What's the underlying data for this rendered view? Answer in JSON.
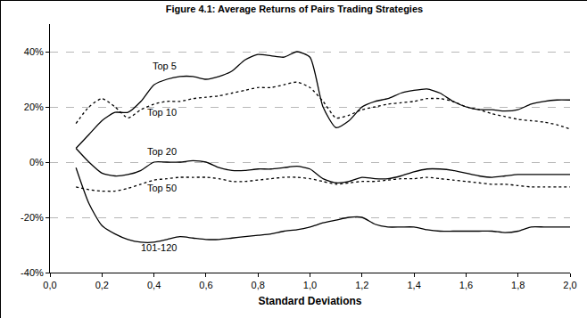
{
  "chart_data": {
    "type": "line",
    "title": "Figure 4.1: Average Returns of Pairs Trading Strategies",
    "x_label": "Standard Deviations",
    "x": [
      0.1,
      0.15,
      0.2,
      0.25,
      0.3,
      0.35,
      0.4,
      0.45,
      0.5,
      0.55,
      0.6,
      0.65,
      0.7,
      0.75,
      0.8,
      0.85,
      0.9,
      0.95,
      1.0,
      1.05,
      1.1,
      1.15,
      1.2,
      1.25,
      1.3,
      1.35,
      1.4,
      1.45,
      1.5,
      1.55,
      1.6,
      1.65,
      1.7,
      1.75,
      1.8,
      1.85,
      1.9,
      1.95,
      2.0
    ],
    "series": [
      {
        "name": "Top 5",
        "color": "#000000",
        "line_style": "solid",
        "values": [
          5,
          10,
          15,
          18,
          18,
          22,
          28,
          30,
          31,
          31,
          30,
          31,
          33,
          37,
          39,
          38.5,
          38,
          40,
          38,
          20,
          12.5,
          15,
          20,
          22,
          23,
          25,
          26,
          26.5,
          25,
          22,
          20,
          19,
          19,
          18.5,
          19,
          21,
          22,
          22.5,
          22.5
        ]
      },
      {
        "name": "Top 10",
        "color": "#000000",
        "line_style": "dotted",
        "values": [
          14,
          20,
          23,
          20,
          16,
          19,
          21,
          22,
          22,
          23,
          23.5,
          24,
          25,
          26,
          27,
          27,
          28,
          29,
          27,
          22,
          16,
          17,
          19,
          20,
          21,
          21.5,
          22,
          23,
          23,
          22,
          20,
          19,
          17.5,
          16.5,
          15.5,
          15,
          14.5,
          13.5,
          12
        ]
      },
      {
        "name": "Top 20",
        "color": "#000000",
        "line_style": "solid",
        "values": [
          5,
          0,
          -4,
          -5,
          -4.5,
          -3,
          0,
          0,
          0,
          0.5,
          0,
          -2,
          -3,
          -3,
          -2.5,
          -2.5,
          -2,
          -1.5,
          -2.5,
          -6,
          -7.5,
          -7,
          -5.5,
          -6,
          -6,
          -5,
          -3.5,
          -2.5,
          -2.5,
          -3,
          -4,
          -5,
          -5.5,
          -5,
          -4.5,
          -4.5,
          -4.5,
          -4.5,
          -4.5
        ]
      },
      {
        "name": "Top 50",
        "color": "#000000",
        "line_style": "dotted",
        "values": [
          -9,
          -10,
          -10.5,
          -10.5,
          -9.5,
          -8,
          -6.5,
          -6,
          -5.5,
          -5.5,
          -5.5,
          -6,
          -7,
          -7,
          -6.5,
          -6,
          -5.5,
          -5.5,
          -6,
          -7,
          -8,
          -7.5,
          -7,
          -7,
          -6.5,
          -6,
          -6,
          -5.5,
          -6,
          -6.5,
          -7,
          -7.5,
          -8,
          -8,
          -8.5,
          -9,
          -9,
          -9,
          -9
        ]
      },
      {
        "name": "101-120",
        "color": "#000000",
        "line_style": "solid",
        "values": [
          -2,
          -15,
          -23,
          -26,
          -28,
          -29,
          -29,
          -28,
          -27,
          -27.5,
          -28,
          -28,
          -27.5,
          -27,
          -26.5,
          -26,
          -25,
          -24.5,
          -23.5,
          -22,
          -21,
          -20,
          -20,
          -22.5,
          -23.5,
          -23.5,
          -23.5,
          -24.5,
          -25,
          -25,
          -25,
          -25,
          -25,
          -25.5,
          -25,
          -23.5,
          -23.5,
          -23.5,
          -23.5
        ]
      }
    ],
    "xlim": [
      0,
      2.0
    ],
    "xticks": [
      {
        "value": 0,
        "label": "0,0"
      },
      {
        "value": 0.2,
        "label": "0,2"
      },
      {
        "value": 0.4,
        "label": "0,4"
      },
      {
        "value": 0.6,
        "label": "0,6"
      },
      {
        "value": 0.8,
        "label": "0,8"
      },
      {
        "value": 1.0,
        "label": "1,0"
      },
      {
        "value": 1.2,
        "label": "1,2"
      },
      {
        "value": 1.4,
        "label": "1,4"
      },
      {
        "value": 1.6,
        "label": "1,6"
      },
      {
        "value": 1.8,
        "label": "1,8"
      },
      {
        "value": 2.0,
        "label": "2,0"
      }
    ],
    "ylim": [
      -40,
      50
    ],
    "yticks": [
      {
        "value": -40,
        "label": "-40%"
      },
      {
        "value": -20,
        "label": "-20%"
      },
      {
        "value": 0,
        "label": "0%"
      },
      {
        "value": 20,
        "label": "20%"
      },
      {
        "value": 40,
        "label": "40%"
      }
    ],
    "grid": true
  }
}
